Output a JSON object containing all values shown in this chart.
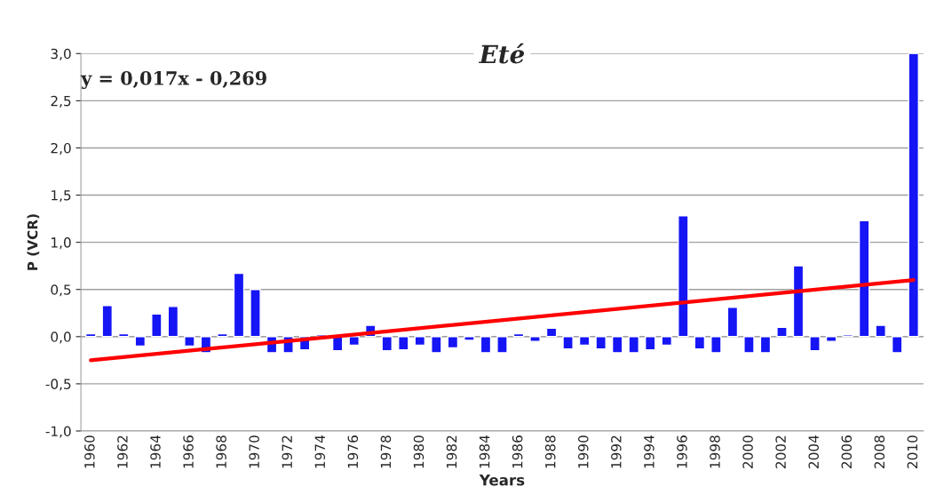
{
  "chart_data": {
    "type": "bar",
    "title": "Eté",
    "xlabel": "Years",
    "ylabel": "P (VCR)",
    "annotations": [
      "y = 0,017x - 0,269"
    ],
    "categories": [
      "1960",
      null,
      "1962",
      null,
      "1964",
      null,
      "1966",
      null,
      "1968",
      null,
      "1970",
      null,
      "1972",
      null,
      "1974",
      null,
      "1976",
      null,
      "1978",
      null,
      "1980",
      null,
      "1982",
      null,
      "1984",
      null,
      "1986",
      null,
      "1988",
      null,
      "1990",
      null,
      "1992",
      null,
      "1994",
      null,
      "1996",
      null,
      "1998",
      null,
      "2000",
      null,
      "2002",
      null,
      "2004",
      null,
      "2006",
      null,
      "2008",
      null,
      "2010"
    ],
    "series": [
      {
        "color": "#1515f5",
        "values": [
          0.03,
          0.33,
          0.03,
          -0.1,
          0.24,
          0.32,
          -0.1,
          -0.17,
          0.03,
          0.67,
          0.5,
          -0.17,
          -0.17,
          -0.14,
          0.02,
          -0.15,
          -0.09,
          0.12,
          -0.15,
          -0.14,
          -0.09,
          -0.17,
          -0.12,
          -0.04,
          -0.17,
          -0.17,
          0.03,
          -0.05,
          0.09,
          -0.13,
          -0.09,
          -0.13,
          -0.17,
          -0.17,
          -0.14,
          -0.09,
          1.28,
          -0.13,
          -0.17,
          0.31,
          -0.17,
          -0.17,
          0.1,
          0.75,
          -0.15,
          -0.05,
          0.02,
          1.23,
          0.12,
          -0.17,
          3.0
        ]
      },
      {
        "type": "line",
        "color": "#ff0000",
        "values": [
          -0.25,
          null,
          null,
          null,
          null,
          null,
          null,
          null,
          null,
          null,
          null,
          null,
          null,
          null,
          null,
          null,
          null,
          null,
          null,
          null,
          null,
          null,
          null,
          null,
          null,
          null,
          null,
          null,
          null,
          null,
          null,
          null,
          null,
          null,
          null,
          null,
          null,
          null,
          null,
          null,
          null,
          null,
          null,
          null,
          null,
          null,
          null,
          null,
          null,
          null,
          0.6
        ]
      }
    ],
    "ylim": [
      -1.0,
      3.0
    ],
    "yticks": [
      {
        "value": -1.0,
        "label": "-1,0"
      },
      {
        "value": -0.5,
        "label": "-0,5"
      },
      {
        "value": 0,
        "label": "0,0"
      },
      {
        "value": 0.5,
        "label": "0,5"
      },
      {
        "value": 1.0,
        "label": "1,0"
      },
      {
        "value": 1.5,
        "label": "1,5"
      },
      {
        "value": 2.0,
        "label": "2,0"
      },
      {
        "value": 2.5,
        "label": "2,5"
      },
      {
        "value": 3.0,
        "label": "3,0"
      }
    ],
    "grid": "y",
    "legend": false
  }
}
